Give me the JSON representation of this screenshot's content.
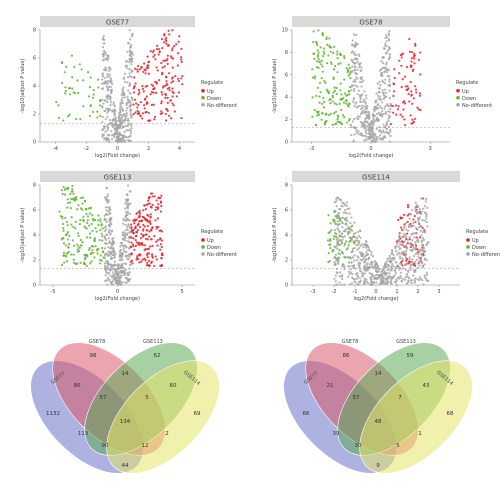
{
  "colors": {
    "up": "#e8202a",
    "down": "#5db52e",
    "nodiff": "#a6a6a6",
    "venn": [
      "#6a72c9",
      "#d95b6b",
      "#5faa58",
      "#e6e46a"
    ]
  },
  "legend_labels": {
    "title": "Regulate",
    "up": "Up",
    "down": "Down",
    "nodiff": "No-different"
  },
  "chart_data": [
    {
      "type": "scatter",
      "title": "GSE77",
      "xlabel": "log2(Fold change)",
      "ylabel": "-log10(adjust P value)",
      "xlim": [
        -5,
        5
      ],
      "ylim": [
        0,
        8
      ],
      "xticks": [
        -4,
        -2,
        0,
        2,
        4
      ],
      "yticks": [
        0,
        2,
        4,
        6,
        8
      ],
      "threshold_y": 1.3,
      "series": [
        {
          "name": "Up",
          "color_key": "up",
          "count_est": 190,
          "x_range": [
            1,
            4.2
          ],
          "y_range": [
            1.5,
            8
          ]
        },
        {
          "name": "Down",
          "color_key": "down",
          "count_est": 50,
          "x_range": [
            -4,
            -1
          ],
          "y_range": [
            1.5,
            6.5
          ]
        },
        {
          "name": "No-different",
          "color_key": "nodiff",
          "count_est": 420,
          "x_range": [
            -1,
            1
          ],
          "y_range": [
            0,
            8
          ]
        }
      ]
    },
    {
      "type": "scatter",
      "title": "GSE78",
      "xlabel": "log2(Fold change)",
      "ylabel": "-log10(adjust P value)",
      "xlim": [
        -4,
        4
      ],
      "ylim": [
        0,
        10
      ],
      "xticks": [
        -3,
        0,
        3
      ],
      "yticks": [
        0,
        2,
        4,
        6,
        8,
        10
      ],
      "threshold_y": 1.3,
      "series": [
        {
          "name": "Up",
          "color_key": "up",
          "count_est": 80,
          "x_range": [
            1,
            2.5
          ],
          "y_range": [
            1.5,
            9.5
          ]
        },
        {
          "name": "Down",
          "color_key": "down",
          "count_est": 170,
          "x_range": [
            -3,
            -1
          ],
          "y_range": [
            1.5,
            10
          ]
        },
        {
          "name": "No-different",
          "color_key": "nodiff",
          "count_est": 420,
          "x_range": [
            -1,
            1
          ],
          "y_range": [
            0,
            10
          ]
        }
      ]
    },
    {
      "type": "scatter",
      "title": "GSE113",
      "xlabel": "log2(Fold change)",
      "ylabel": "-log10(adjust P value)",
      "xlim": [
        -6,
        6
      ],
      "ylim": [
        0,
        8
      ],
      "xticks": [
        -5,
        0,
        5
      ],
      "yticks": [
        0,
        2,
        4,
        6,
        8
      ],
      "threshold_y": 1.3,
      "series": [
        {
          "name": "Up",
          "color_key": "up",
          "count_est": 200,
          "x_range": [
            1,
            3.5
          ],
          "y_range": [
            1.5,
            7.5
          ]
        },
        {
          "name": "Down",
          "color_key": "down",
          "count_est": 180,
          "x_range": [
            -4.5,
            -1
          ],
          "y_range": [
            1.5,
            8
          ]
        },
        {
          "name": "No-different",
          "color_key": "nodiff",
          "count_est": 400,
          "x_range": [
            -1,
            1
          ],
          "y_range": [
            0,
            8
          ]
        }
      ]
    },
    {
      "type": "scatter",
      "title": "GSE114",
      "xlabel": "log2(Fold change)",
      "ylabel": "-log10(adjust P value)",
      "xlim": [
        -4,
        4
      ],
      "ylim": [
        0,
        8
      ],
      "xticks": [
        -3,
        -2,
        -1,
        0,
        1,
        2,
        3
      ],
      "yticks": [
        0,
        2,
        4,
        6,
        8
      ],
      "threshold_y": 1.3,
      "series": [
        {
          "name": "Up",
          "color_key": "up",
          "count_est": 80,
          "x_range": [
            1,
            2.3
          ],
          "y_range": [
            1.5,
            7
          ]
        },
        {
          "name": "Down",
          "color_key": "down",
          "count_est": 80,
          "x_range": [
            -2.3,
            -1
          ],
          "y_range": [
            1.5,
            6
          ]
        },
        {
          "name": "No-different",
          "color_key": "nodiff",
          "count_est": 700,
          "x_range": [
            -2,
            2.5
          ],
          "y_range": [
            0,
            7
          ]
        }
      ]
    },
    {
      "type": "venn",
      "sets": [
        "GSE77",
        "GSE78",
        "GSE113",
        "GSE114"
      ],
      "regions": {
        "A": "1132",
        "B": "98",
        "C": "62",
        "D": "69",
        "AB": "86",
        "BC": "14",
        "CD": "60",
        "AC": "113",
        "BD": "2",
        "AD": "44",
        "ABC": "57",
        "BCD": "5",
        "ACD": "90",
        "ABD": "12",
        "ABCD": "134"
      }
    },
    {
      "type": "venn",
      "sets": [
        "GSE77",
        "GSE78",
        "GSE113",
        "GSE114"
      ],
      "regions": {
        "A": "66",
        "B": "86",
        "C": "59",
        "D": "68",
        "AB": "21",
        "BC": "14",
        "CD": "43",
        "AC": "39",
        "BD": "1",
        "AD": "9",
        "ABC": "57",
        "BCD": "7",
        "ACD": "30",
        "ABD": "5",
        "ABCD": "48"
      }
    }
  ]
}
